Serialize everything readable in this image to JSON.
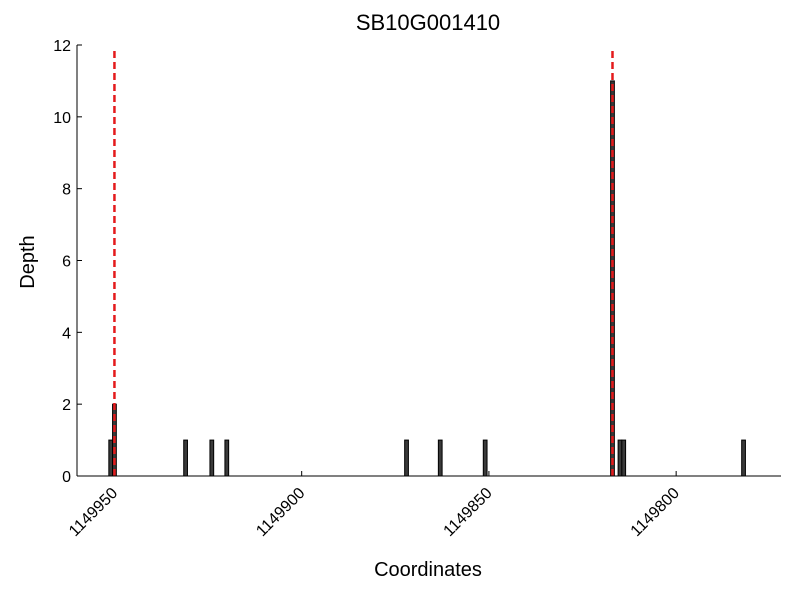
{
  "chart_data": {
    "type": "bar",
    "title": "SB10G001410",
    "x_label": "Coordinates",
    "y_label": "Depth",
    "x": [
      1149951,
      1149950,
      1149931,
      1149924,
      1149920,
      1149872,
      1149863,
      1149851,
      1149817,
      1149815,
      1149814,
      1149782
    ],
    "values": [
      1,
      2,
      1,
      1,
      1,
      1,
      1,
      1,
      11,
      1,
      1,
      1
    ],
    "color": "#3a3a3a",
    "edgecolor": "#000000",
    "xlim": [
      1149960,
      1149772
    ],
    "xticks": [
      1149950,
      1149900,
      1149850,
      1149800
    ],
    "ylim": [
      0,
      12
    ],
    "yticks": [
      0,
      2,
      4,
      6,
      8,
      10,
      12
    ],
    "vlines": {
      "x": [
        1149950,
        1149817
      ],
      "color": "#e41a1c",
      "style": "dashed"
    }
  }
}
